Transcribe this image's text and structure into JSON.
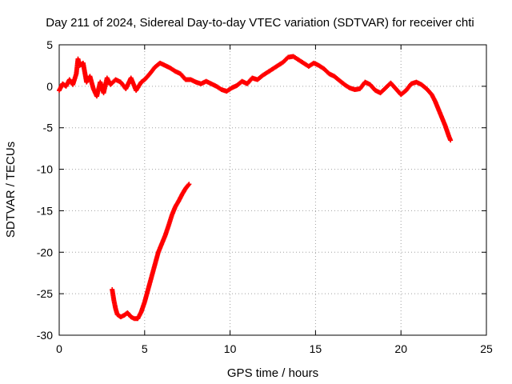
{
  "chart_data": {
    "type": "scatter",
    "title": "Day 211 of 2024, Sidereal Day-to-day VTEC variation (SDTVAR) for receiver chti",
    "xlabel": "GPS time / hours",
    "ylabel": "SDTVAR / TECUs",
    "xlim": [
      0,
      25
    ],
    "ylim": [
      -30,
      5
    ],
    "xticks": [
      0,
      5,
      10,
      15,
      20,
      25
    ],
    "yticks": [
      5,
      0,
      -5,
      -10,
      -15,
      -20,
      -25,
      -30
    ],
    "grid": true,
    "marker": "+",
    "color": "#ff0000",
    "series": [
      {
        "name": "main",
        "x": [
          0.0,
          0.2,
          0.4,
          0.6,
          0.8,
          1.0,
          1.1,
          1.2,
          1.4,
          1.6,
          1.8,
          2.0,
          2.2,
          2.4,
          2.6,
          2.8,
          3.0,
          3.3,
          3.6,
          3.9,
          4.2,
          4.5,
          4.8,
          5.0,
          5.3,
          5.6,
          5.9,
          6.2,
          6.5,
          6.8,
          7.1,
          7.4,
          7.7,
          8.0,
          8.3,
          8.6,
          8.9,
          9.2,
          9.5,
          9.8,
          10.1,
          10.4,
          10.7,
          11.0,
          11.3,
          11.6,
          11.9,
          12.2,
          12.5,
          12.8,
          13.1,
          13.4,
          13.7,
          14.0,
          14.3,
          14.6,
          14.9,
          15.2,
          15.5,
          15.8,
          16.1,
          16.4,
          16.7,
          17.0,
          17.3,
          17.6,
          17.9,
          18.2,
          18.5,
          18.8,
          19.1,
          19.4,
          19.7,
          20.0,
          20.3,
          20.6,
          20.9,
          21.2,
          21.5,
          21.8,
          22.0,
          22.2,
          22.4,
          22.6,
          22.8,
          22.9
        ],
        "y": [
          -0.5,
          0.3,
          0.0,
          0.8,
          0.2,
          1.5,
          3.3,
          2.5,
          2.8,
          0.5,
          1.2,
          -0.3,
          -1.2,
          0.5,
          -0.8,
          1.0,
          0.2,
          0.8,
          0.5,
          -0.3,
          1.0,
          -0.5,
          0.5,
          0.8,
          1.5,
          2.3,
          2.8,
          2.5,
          2.2,
          1.8,
          1.5,
          0.8,
          0.8,
          0.5,
          0.3,
          0.6,
          0.3,
          0.0,
          -0.4,
          -0.6,
          -0.2,
          0.1,
          0.6,
          0.3,
          1.0,
          0.8,
          1.3,
          1.7,
          2.1,
          2.5,
          2.9,
          3.5,
          3.6,
          3.2,
          2.8,
          2.4,
          2.8,
          2.5,
          2.1,
          1.5,
          1.2,
          0.7,
          0.2,
          -0.2,
          -0.4,
          -0.3,
          0.5,
          0.2,
          -0.5,
          -0.8,
          -0.2,
          0.4,
          -0.3,
          -1.0,
          -0.5,
          0.3,
          0.5,
          0.2,
          -0.3,
          -1.0,
          -1.8,
          -2.8,
          -3.8,
          -4.8,
          -6.0,
          -6.5
        ]
      },
      {
        "name": "lower-track",
        "x": [
          3.1,
          3.2,
          3.3,
          3.4,
          3.6,
          3.8,
          4.0,
          4.2,
          4.4,
          4.6,
          4.8,
          5.0,
          5.2,
          5.4,
          5.6,
          5.8,
          6.0,
          6.2,
          6.4,
          6.6,
          6.8,
          7.0,
          7.2,
          7.4,
          7.6
        ],
        "y": [
          -24.5,
          -25.8,
          -26.8,
          -27.5,
          -27.8,
          -27.6,
          -27.3,
          -27.8,
          -28.0,
          -28.0,
          -27.2,
          -26.0,
          -24.5,
          -23.0,
          -21.5,
          -20.0,
          -19.0,
          -18.0,
          -16.8,
          -15.5,
          -14.5,
          -13.8,
          -13.0,
          -12.3,
          -11.8
        ]
      }
    ]
  }
}
